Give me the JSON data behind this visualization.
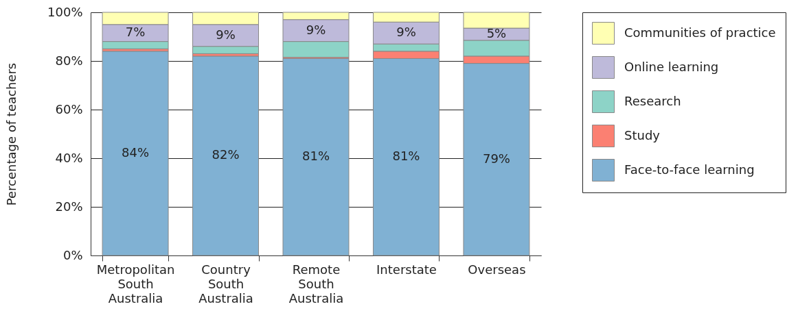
{
  "chart_data": {
    "type": "bar",
    "stacked": true,
    "ylabel": "Percentage of teachers",
    "categories": [
      "Metropolitan South Australia",
      "Country South Australia",
      "Remote South Australia",
      "Interstate",
      "Overseas"
    ],
    "ylim": [
      0,
      100
    ],
    "yticks": [
      {
        "value": 0,
        "label": "0%"
      },
      {
        "value": 20,
        "label": "20%"
      },
      {
        "value": 40,
        "label": "40%"
      },
      {
        "value": 60,
        "label": "60%"
      },
      {
        "value": 80,
        "label": "80%"
      },
      {
        "value": 100,
        "label": "100%"
      }
    ],
    "grid": "y",
    "legend": "top right",
    "series": [
      {
        "name": "Face-to-face learning",
        "color": "#80b1d3",
        "values": [
          84,
          82,
          81,
          81,
          79
        ],
        "value_labels": [
          "84%",
          "82%",
          "81%",
          "81%",
          "79%"
        ]
      },
      {
        "name": "Study",
        "color": "#fb8072",
        "values": [
          1,
          1,
          0.5,
          3,
          3
        ]
      },
      {
        "name": "Research",
        "color": "#8dd3c7",
        "values": [
          3,
          3,
          6.5,
          3,
          6.5
        ]
      },
      {
        "name": "Online learning",
        "color": "#bebada",
        "values": [
          7,
          9,
          9,
          9,
          5
        ],
        "value_labels": [
          "7%",
          "9%",
          "9%",
          "9%",
          "5%"
        ]
      },
      {
        "name": "Communities of practice",
        "color": "#ffffb3",
        "values": [
          5,
          5,
          3,
          4,
          6.5
        ]
      }
    ]
  }
}
